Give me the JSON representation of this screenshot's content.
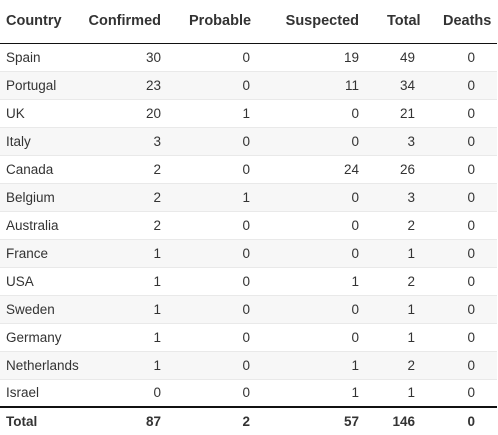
{
  "table": {
    "headers": [
      "Country",
      "Confirmed",
      "Probable",
      "Suspected",
      "Total",
      "Deaths"
    ],
    "rows": [
      [
        "Spain",
        "30",
        "0",
        "19",
        "49",
        "0"
      ],
      [
        "Portugal",
        "23",
        "0",
        "11",
        "34",
        "0"
      ],
      [
        "UK",
        "20",
        "1",
        "0",
        "21",
        "0"
      ],
      [
        "Italy",
        "3",
        "0",
        "0",
        "3",
        "0"
      ],
      [
        "Canada",
        "2",
        "0",
        "24",
        "26",
        "0"
      ],
      [
        "Belgium",
        "2",
        "1",
        "0",
        "3",
        "0"
      ],
      [
        "Australia",
        "2",
        "0",
        "0",
        "2",
        "0"
      ],
      [
        "France",
        "1",
        "0",
        "0",
        "1",
        "0"
      ],
      [
        "USA",
        "1",
        "0",
        "1",
        "2",
        "0"
      ],
      [
        "Sweden",
        "1",
        "0",
        "0",
        "1",
        "0"
      ],
      [
        "Germany",
        "1",
        "0",
        "0",
        "1",
        "0"
      ],
      [
        "Netherlands",
        "1",
        "0",
        "1",
        "2",
        "0"
      ],
      [
        "Israel",
        "0",
        "0",
        "1",
        "1",
        "0"
      ]
    ],
    "footer": [
      "Total",
      "87",
      "2",
      "57",
      "146",
      "0"
    ]
  }
}
